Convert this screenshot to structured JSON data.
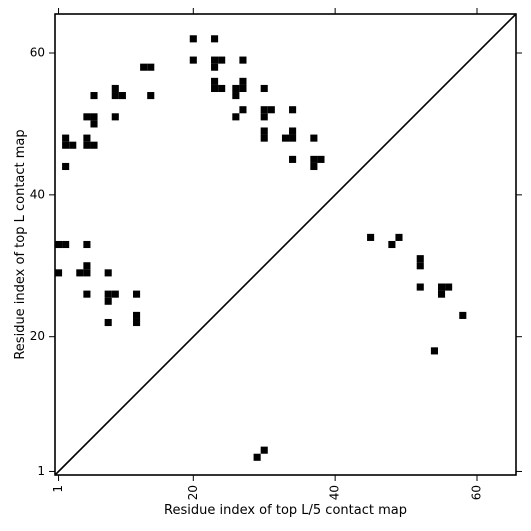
{
  "chart_data": {
    "type": "scatter",
    "subtype": "contact-map",
    "xlabel": "Residue index of top L/5 contact map",
    "ylabel": "Residue index of top L contact map",
    "xlim": [
      0.5,
      65.5
    ],
    "ylim": [
      0.5,
      65.5
    ],
    "xticks": [
      1,
      20,
      40,
      60
    ],
    "xtick_labels": [
      "1",
      "20",
      "40",
      "60"
    ],
    "yticks": [
      1,
      20,
      40,
      60
    ],
    "yticks_labels_note": "",
    "ytick_labels": [
      "1",
      "20",
      "40",
      "60"
    ],
    "diagonal": true,
    "marker": "square",
    "marker_color": "#000000",
    "grid": false,
    "upper_left_top_L": [
      [
        20,
        62
      ],
      [
        23,
        62
      ],
      [
        20,
        59
      ],
      [
        23,
        59
      ],
      [
        24,
        59
      ],
      [
        27,
        59
      ],
      [
        13,
        58
      ],
      [
        14,
        58
      ],
      [
        23,
        58
      ],
      [
        23,
        56
      ],
      [
        27,
        56
      ],
      [
        23,
        55
      ],
      [
        24,
        55
      ],
      [
        26,
        55
      ],
      [
        27,
        55
      ],
      [
        30,
        55
      ],
      [
        6,
        54
      ],
      [
        9,
        54
      ],
      [
        10,
        54
      ],
      [
        14,
        54
      ],
      [
        26,
        54
      ],
      [
        9,
        55
      ],
      [
        27,
        52
      ],
      [
        30,
        52
      ],
      [
        31,
        52
      ],
      [
        34,
        52
      ],
      [
        5,
        51
      ],
      [
        6,
        51
      ],
      [
        9,
        51
      ],
      [
        26,
        51
      ],
      [
        30,
        51
      ],
      [
        6,
        50
      ],
      [
        30,
        49
      ],
      [
        34,
        49
      ],
      [
        2,
        48
      ],
      [
        5,
        48
      ],
      [
        30,
        48
      ],
      [
        33,
        48
      ],
      [
        34,
        48
      ],
      [
        37,
        48
      ],
      [
        2,
        47
      ],
      [
        3,
        47
      ],
      [
        5,
        47
      ],
      [
        6,
        47
      ],
      [
        34,
        45
      ],
      [
        37,
        45
      ],
      [
        38,
        45
      ],
      [
        2,
        44
      ],
      [
        37,
        44
      ],
      [
        1,
        33
      ],
      [
        2,
        33
      ],
      [
        5,
        33
      ],
      [
        5,
        30
      ],
      [
        1,
        29
      ],
      [
        4,
        29
      ],
      [
        5,
        29
      ],
      [
        8,
        29
      ],
      [
        5,
        26
      ],
      [
        8,
        26
      ],
      [
        9,
        26
      ],
      [
        12,
        26
      ],
      [
        8,
        25
      ],
      [
        12,
        23
      ],
      [
        12,
        22
      ],
      [
        8,
        22
      ]
    ],
    "lower_right_top_L5": [
      [
        45,
        34
      ],
      [
        49,
        34
      ],
      [
        48,
        33
      ],
      [
        52,
        31
      ],
      [
        52,
        30
      ],
      [
        52,
        27
      ],
      [
        55,
        27
      ],
      [
        56,
        27
      ],
      [
        55,
        26
      ],
      [
        58,
        23
      ],
      [
        54,
        18
      ],
      [
        30,
        4
      ],
      [
        29,
        3
      ]
    ]
  }
}
